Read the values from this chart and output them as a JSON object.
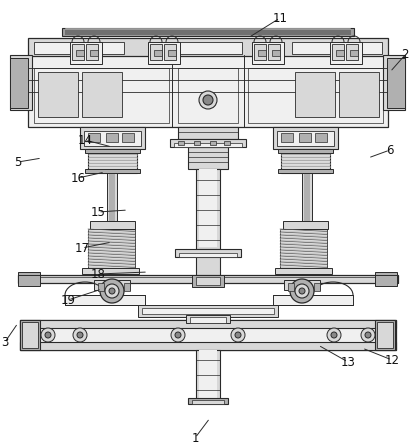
{
  "bg_color": "#ffffff",
  "lc": "#2a2a2a",
  "fc_light": "#f0f0f0",
  "fc_mid": "#d8d8d8",
  "fc_dark": "#b0b0b0",
  "fc_darkest": "#888888",
  "figsize": [
    4.15,
    4.44
  ],
  "dpi": 100,
  "annotations": [
    [
      "11",
      248,
      38,
      280,
      18
    ],
    [
      "2",
      390,
      72,
      405,
      55
    ],
    [
      "5",
      42,
      158,
      18,
      162
    ],
    [
      "6",
      368,
      158,
      390,
      150
    ],
    [
      "14",
      112,
      147,
      85,
      140
    ],
    [
      "16",
      105,
      172,
      78,
      178
    ],
    [
      "15",
      128,
      210,
      98,
      212
    ],
    [
      "17",
      112,
      242,
      82,
      248
    ],
    [
      "18",
      148,
      272,
      98,
      274
    ],
    [
      "19",
      102,
      289,
      68,
      300
    ],
    [
      "3",
      18,
      323,
      5,
      342
    ],
    [
      "13",
      318,
      345,
      348,
      362
    ],
    [
      "12",
      362,
      348,
      392,
      360
    ],
    [
      "1",
      210,
      418,
      195,
      438
    ]
  ]
}
